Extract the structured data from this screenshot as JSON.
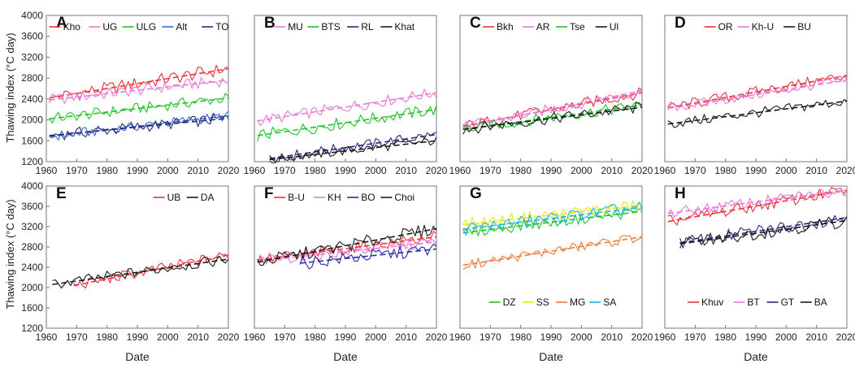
{
  "figure": {
    "ylabel": "Thawing index (°C day)",
    "xlabel": "Date"
  },
  "chart_data": [
    {
      "type": "line",
      "panel": "A",
      "title": "A",
      "xlim": [
        1960,
        2020
      ],
      "ylim": [
        1200,
        4000
      ],
      "xticks": [
        "1960",
        "1970",
        "1980",
        "1990",
        "2000",
        "2010",
        "2020"
      ],
      "yticks": [
        "4000",
        "3600",
        "3200",
        "2800",
        "2400",
        "2000",
        "1600",
        "1200"
      ],
      "xlabel": "",
      "ylabel": "Thawing index (°C day)",
      "legend_position": "top",
      "series": [
        {
          "name": "Kho",
          "color": "#e8333a",
          "start": 1961,
          "base": 2420,
          "trend": 2980,
          "noise": 130
        },
        {
          "name": "UG",
          "color": "#e87ad8",
          "start": 1961,
          "base": 2380,
          "trend": 2760,
          "noise": 110
        },
        {
          "name": "ULG",
          "color": "#22c22c",
          "start": 1961,
          "base": 2020,
          "trend": 2420,
          "noise": 110
        },
        {
          "name": "Alt",
          "color": "#2f6fd6",
          "start": 1961,
          "base": 1680,
          "trend": 2080,
          "noise": 100
        },
        {
          "name": "TO",
          "color": "#2a2a7a",
          "start": 1961,
          "base": 1700,
          "trend": 2030,
          "noise": 110
        }
      ]
    },
    {
      "type": "line",
      "panel": "B",
      "title": "B",
      "xlim": [
        1960,
        2020
      ],
      "ylim": [
        1200,
        4000
      ],
      "xticks": [
        "1960",
        "1970",
        "1980",
        "1990",
        "2000",
        "2010",
        "2020"
      ],
      "yticks": [],
      "xlabel": "",
      "ylabel": "",
      "legend_position": "top",
      "series": [
        {
          "name": "MU",
          "color": "#e87ad8",
          "start": 1961,
          "base": 1980,
          "trend": 2520,
          "noise": 110
        },
        {
          "name": "BTS",
          "color": "#22c22c",
          "start": 1961,
          "base": 1700,
          "trend": 2200,
          "noise": 120
        },
        {
          "name": "RL",
          "color": "#2a2a7a",
          "start": 1965,
          "base": 1260,
          "trend": 1720,
          "noise": 100
        },
        {
          "name": "Khat",
          "color": "#1a1a1a",
          "start": 1965,
          "base": 1240,
          "trend": 1600,
          "noise": 90
        }
      ]
    },
    {
      "type": "line",
      "panel": "C",
      "title": "C",
      "xlim": [
        1960,
        2020
      ],
      "ylim": [
        1200,
        4000
      ],
      "xticks": [
        "1960",
        "1970",
        "1980",
        "1990",
        "2000",
        "2010",
        "2020"
      ],
      "yticks": [],
      "xlabel": "",
      "ylabel": "",
      "legend_position": "top",
      "series": [
        {
          "name": "Bkh",
          "color": "#e8333a",
          "start": 1961,
          "base": 1880,
          "trend": 2520,
          "noise": 110
        },
        {
          "name": "AR",
          "color": "#e87ad8",
          "start": 1961,
          "base": 1860,
          "trend": 2560,
          "noise": 110
        },
        {
          "name": "Tse",
          "color": "#22c22c",
          "start": 1961,
          "base": 1820,
          "trend": 2280,
          "noise": 110
        },
        {
          "name": "Ul",
          "color": "#1a1a1a",
          "start": 1961,
          "base": 1820,
          "trend": 2240,
          "noise": 110
        }
      ]
    },
    {
      "type": "line",
      "panel": "D",
      "title": "D",
      "xlim": [
        1960,
        2020
      ],
      "ylim": [
        1200,
        4000
      ],
      "xticks": [
        "1960",
        "1970",
        "1980",
        "1990",
        "2000",
        "2010",
        "2020"
      ],
      "yticks": [],
      "xlabel": "",
      "ylabel": "",
      "legend_position": "top",
      "series": [
        {
          "name": "OR",
          "color": "#e8333a",
          "start": 1961,
          "base": 2230,
          "trend": 2850,
          "noise": 110
        },
        {
          "name": "Kh-U",
          "color": "#e87ad8",
          "start": 1961,
          "base": 2220,
          "trend": 2760,
          "noise": 100
        },
        {
          "name": "BU",
          "color": "#1a1a1a",
          "start": 1961,
          "base": 1920,
          "trend": 2360,
          "noise": 100
        }
      ]
    },
    {
      "type": "line",
      "panel": "E",
      "title": "E",
      "xlim": [
        1960,
        2020
      ],
      "ylim": [
        1200,
        4000
      ],
      "xticks": [
        "1960",
        "1970",
        "1980",
        "1990",
        "2000",
        "2010",
        "2020"
      ],
      "yticks": [
        "4000",
        "3600",
        "3200",
        "2800",
        "2400",
        "2000",
        "1600",
        "1200"
      ],
      "xlabel": "Date",
      "ylabel": "Thawing index (°C day)",
      "legend_position": "top-right",
      "series": [
        {
          "name": "UB",
          "color": "#e8333a",
          "start": 1969,
          "base": 2040,
          "trend": 2640,
          "noise": 110
        },
        {
          "name": "DA",
          "color": "#1a1a1a",
          "start": 1962,
          "base": 2060,
          "trend": 2560,
          "noise": 110
        }
      ]
    },
    {
      "type": "line",
      "panel": "F",
      "title": "F",
      "xlim": [
        1960,
        2020
      ],
      "ylim": [
        1200,
        4000
      ],
      "xticks": [
        "1960",
        "1970",
        "1980",
        "1990",
        "2000",
        "2010",
        "2020"
      ],
      "yticks": [],
      "xlabel": "Date",
      "ylabel": "",
      "legend_position": "top",
      "series": [
        {
          "name": "B-U",
          "color": "#e8333a",
          "start": 1961,
          "base": 2540,
          "trend": 3000,
          "noise": 120
        },
        {
          "name": "KH",
          "color": "#e87ad8",
          "start": 1961,
          "base": 2520,
          "trend": 2900,
          "noise": 110
        },
        {
          "name": "BO",
          "color": "#2a2aa8",
          "start": 1975,
          "base": 2480,
          "trend": 2760,
          "noise": 130
        },
        {
          "name": "Choi",
          "color": "#1a1a1a",
          "start": 1961,
          "base": 2500,
          "trend": 3160,
          "noise": 130
        }
      ]
    },
    {
      "type": "line",
      "panel": "G",
      "title": "G",
      "xlim": [
        1960,
        2020
      ],
      "ylim": [
        1200,
        4000
      ],
      "xticks": [
        "1960",
        "1970",
        "1980",
        "1990",
        "2000",
        "2010",
        "2020"
      ],
      "yticks": [],
      "xlabel": "Date",
      "ylabel": "",
      "legend_position": "bottom",
      "series": [
        {
          "name": "DZ",
          "color": "#22c22c",
          "start": 1961,
          "base": 3080,
          "trend": 3500,
          "noise": 110
        },
        {
          "name": "SS",
          "color": "#e8e81a",
          "start": 1961,
          "base": 3240,
          "trend": 3620,
          "noise": 130
        },
        {
          "name": "MG",
          "color": "#ef7a3a",
          "start": 1961,
          "base": 2440,
          "trend": 3000,
          "noise": 100
        },
        {
          "name": "SA",
          "color": "#1ab4e8",
          "start": 1961,
          "base": 3150,
          "trend": 3580,
          "noise": 130
        }
      ]
    },
    {
      "type": "line",
      "panel": "H",
      "title": "H",
      "xlim": [
        1960,
        2020
      ],
      "ylim": [
        1200,
        4000
      ],
      "xticks": [
        "1960",
        "1970",
        "1980",
        "1990",
        "2000",
        "2010",
        "2020"
      ],
      "yticks": [],
      "xlabel": "Date",
      "ylabel": "",
      "legend_position": "bottom",
      "series": [
        {
          "name": "Khuv",
          "color": "#e8333a",
          "start": 1961,
          "base": 3300,
          "trend": 3920,
          "noise": 120
        },
        {
          "name": "BT",
          "color": "#e87ad8",
          "start": 1961,
          "base": 3460,
          "trend": 3920,
          "noise": 110
        },
        {
          "name": "GT",
          "color": "#2a2a7a",
          "start": 1965,
          "base": 2880,
          "trend": 3380,
          "noise": 130
        },
        {
          "name": "BA",
          "color": "#1a1a1a",
          "start": 1965,
          "base": 2860,
          "trend": 3320,
          "noise": 130
        }
      ]
    }
  ]
}
